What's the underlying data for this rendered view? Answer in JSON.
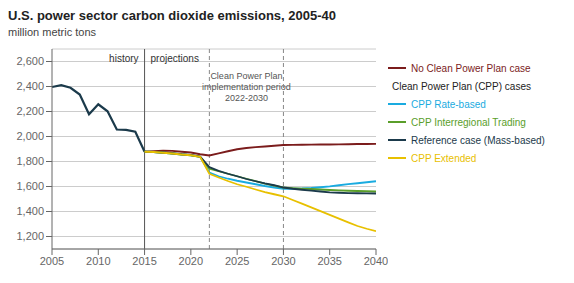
{
  "chart_data": {
    "type": "line",
    "title": "U.S. power sector carbon dioxide emissions, 2005-40",
    "ylabel": "million metric tons",
    "x": [
      2005,
      2006,
      2007,
      2008,
      2009,
      2010,
      2011,
      2012,
      2013,
      2014,
      2015,
      2016,
      2017,
      2018,
      2019,
      2020,
      2021,
      2022,
      2023,
      2024,
      2025,
      2026,
      2027,
      2028,
      2029,
      2030,
      2031,
      2032,
      2033,
      2034,
      2035,
      2036,
      2037,
      2038,
      2039,
      2040
    ],
    "series": [
      {
        "color": "#1b3a4b",
        "values": [
          2396,
          2410,
          2390,
          2336,
          2178,
          2258,
          2202,
          2056,
          2053,
          2038,
          1878,
          null,
          null,
          null,
          null,
          null,
          null,
          null,
          null,
          null,
          null,
          null,
          null,
          null,
          null,
          null,
          null,
          null,
          null,
          null,
          null,
          null,
          null,
          null,
          null,
          null
        ]
      },
      {
        "name": "No Clean Power Plan case",
        "color": "#7b1c1c",
        "values": [
          null,
          null,
          null,
          null,
          null,
          null,
          null,
          null,
          null,
          null,
          1878,
          1882,
          1886,
          1885,
          1878,
          1872,
          1858,
          1848,
          1865,
          1882,
          1898,
          1908,
          1915,
          1920,
          1926,
          1932,
          1933,
          1934,
          1935,
          1936,
          1936,
          1937,
          1938,
          1940,
          1940,
          1941
        ]
      },
      {
        "name": "CPP Rate-based",
        "color": "#1aabe0",
        "values": [
          null,
          null,
          null,
          null,
          null,
          null,
          null,
          null,
          null,
          null,
          1878,
          1876,
          1870,
          1864,
          1856,
          1850,
          1838,
          1712,
          1682,
          1662,
          1646,
          1632,
          1618,
          1604,
          1592,
          1582,
          1582,
          1584,
          1588,
          1594,
          1601,
          1610,
          1619,
          1626,
          1634,
          1642
        ]
      },
      {
        "name": "CPP Interregional Trading",
        "color": "#5a9e2a",
        "values": [
          null,
          null,
          null,
          null,
          null,
          null,
          null,
          null,
          null,
          null,
          1878,
          1876,
          1870,
          1864,
          1856,
          1850,
          1838,
          1742,
          1722,
          1702,
          1682,
          1662,
          1643,
          1623,
          1607,
          1592,
          1587,
          1583,
          1580,
          1576,
          1572,
          1569,
          1566,
          1564,
          1562,
          1560
        ]
      },
      {
        "name": "Reference case (Mass-based)",
        "color": "#1b3a4b",
        "values": [
          null,
          null,
          null,
          null,
          null,
          null,
          null,
          null,
          null,
          null,
          1878,
          1876,
          1872,
          1866,
          1858,
          1852,
          1840,
          1755,
          1725,
          1702,
          1682,
          1660,
          1642,
          1625,
          1610,
          1592,
          1582,
          1574,
          1567,
          1560,
          1553,
          1550,
          1547,
          1546,
          1545,
          1544
        ]
      },
      {
        "name": "CPP Extended",
        "color": "#e8c000",
        "values": [
          null,
          null,
          null,
          null,
          null,
          null,
          null,
          null,
          null,
          null,
          1878,
          1876,
          1870,
          1864,
          1856,
          1850,
          1838,
          1702,
          1672,
          1644,
          1618,
          1598,
          1576,
          1555,
          1538,
          1522,
          1492,
          1463,
          1433,
          1403,
          1373,
          1343,
          1313,
          1284,
          1262,
          1242
        ]
      }
    ],
    "legend_title": "Clean Power Plan (CPP) cases",
    "legend": "right",
    "annotations": [
      "history",
      "projections",
      "Clean Power Plan\nimplementation period\n2022-2030"
    ],
    "reference_lines": [
      {
        "x": 2015,
        "line_style": "solid"
      },
      {
        "x": 2022,
        "line_style": "dashed"
      },
      {
        "x": 2030,
        "line_style": "dashed"
      }
    ],
    "xlim": [
      2005,
      2040
    ],
    "xticks": [
      2005,
      2010,
      2015,
      2020,
      2025,
      2030,
      2035,
      2040
    ],
    "ylim": [
      1100,
      2700
    ],
    "yticks": [
      {
        "value": 1200,
        "label": "1,200"
      },
      {
        "value": 1400,
        "label": "1,400"
      },
      {
        "value": 1600,
        "label": "1,600"
      },
      {
        "value": 1800,
        "label": "1,800"
      },
      {
        "value": 2000,
        "label": "2,000"
      },
      {
        "value": 2200,
        "label": "2,200"
      },
      {
        "value": 2400,
        "label": "2,400"
      },
      {
        "value": 2600,
        "label": "2,600"
      }
    ],
    "grid": "y"
  }
}
